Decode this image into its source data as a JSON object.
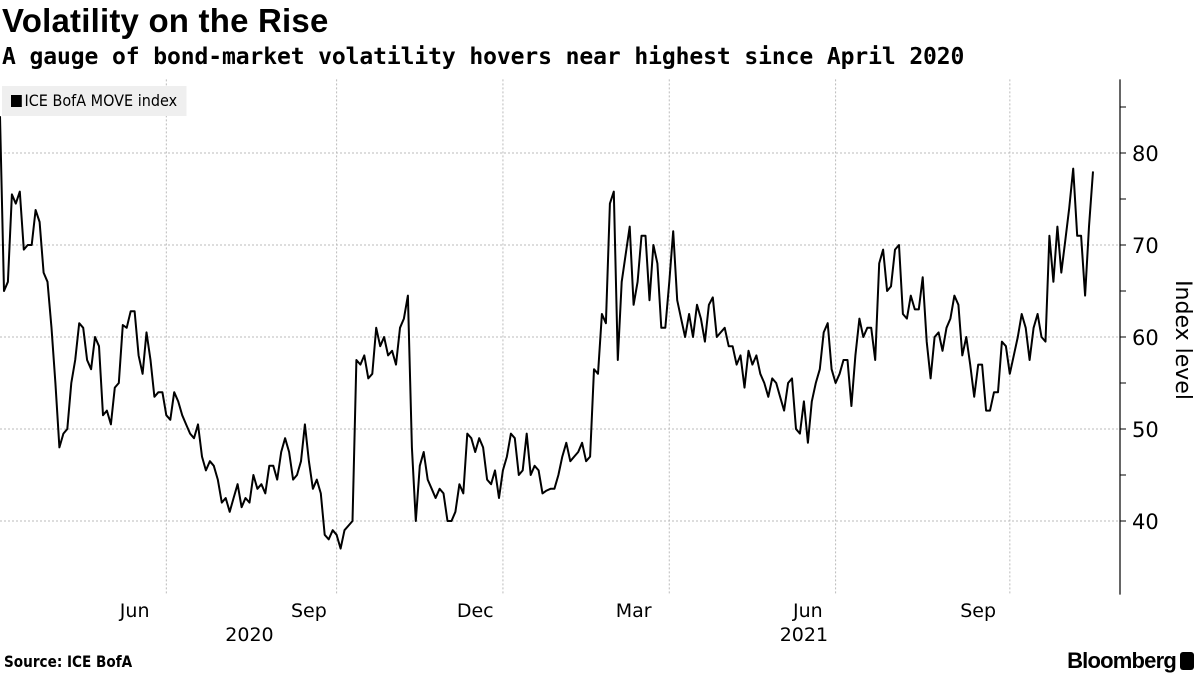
{
  "header": {
    "title": "Volatility on the Rise",
    "subtitle": "A gauge of bond-market volatility hovers near highest since April 2020"
  },
  "footer": {
    "source": "Source: ICE BofA",
    "brand": "Bloomberg"
  },
  "chart_data": {
    "type": "line",
    "title": "Volatility on the Rise",
    "subtitle": "A gauge of bond-market volatility hovers near highest since April 2020",
    "xlabel": "",
    "ylabel": "Index level",
    "ylim": [
      32,
      88
    ],
    "grid": true,
    "legend": {
      "position": "top-left",
      "entries": [
        "ICE BofA MOVE index"
      ]
    },
    "line_color": "#000000",
    "y_ticks": [
      40,
      50,
      60,
      70,
      80
    ],
    "y_minor_ticks": [
      45,
      55,
      65,
      75,
      85
    ],
    "x_gridlines_at_index": [
      42,
      85,
      127,
      169,
      211,
      255
    ],
    "x_ticks": [
      {
        "label": "Jun",
        "index": 34
      },
      {
        "label": "Sep",
        "index": 78
      },
      {
        "label": "Dec",
        "index": 120
      },
      {
        "label": "Mar",
        "index": 160
      },
      {
        "label": "Jun",
        "index": 204
      },
      {
        "label": "Sep",
        "index": 247
      }
    ],
    "x_year_labels": [
      {
        "label": "2020",
        "index": 63
      },
      {
        "label": "2021",
        "index": 203
      }
    ],
    "series": [
      {
        "name": "ICE BofA MOVE index",
        "values": [
          84,
          65,
          66,
          75.5,
          74.5,
          75.8,
          69.5,
          70,
          70,
          73.8,
          72.5,
          67,
          66,
          61,
          55,
          48,
          49.5,
          50,
          55,
          57.5,
          61.5,
          61,
          57.5,
          56.5,
          60,
          59,
          51.5,
          52,
          50.5,
          54.5,
          55,
          61.3,
          61,
          62.8,
          62.8,
          58,
          56,
          60.5,
          57.5,
          53.5,
          54,
          54,
          51.5,
          51,
          54,
          53,
          51.5,
          50.5,
          49.5,
          49,
          50.5,
          47,
          45.5,
          46.5,
          46,
          44.5,
          42,
          42.5,
          41,
          42.5,
          44,
          41.5,
          42.5,
          42,
          45,
          43.5,
          44,
          43,
          46,
          46,
          44.5,
          47.5,
          49,
          47.5,
          44.5,
          45,
          46.5,
          50.5,
          46.5,
          43.5,
          44.5,
          43,
          38.5,
          38,
          39,
          38.5,
          37,
          39,
          39.5,
          40,
          57.5,
          57,
          58,
          55.5,
          56,
          61,
          59,
          60,
          58,
          58.5,
          57,
          61,
          62,
          64.5,
          48,
          40,
          46,
          47.5,
          44.5,
          43.5,
          42.5,
          43.5,
          43,
          40,
          40,
          41,
          44,
          43,
          49.5,
          49,
          47.5,
          49,
          48,
          44.5,
          44,
          45.5,
          42.5,
          45.5,
          47,
          49.5,
          49,
          45,
          45.5,
          49.5,
          45,
          46,
          45.5,
          43,
          43.3,
          43.5,
          43.5,
          45,
          47,
          48.5,
          46.5,
          47,
          47.5,
          48.5,
          46.5,
          47,
          56.5,
          56,
          62.5,
          61.5,
          74.5,
          75.8,
          57.5,
          66,
          69,
          72,
          63.5,
          66,
          71,
          71,
          64,
          70,
          68,
          61,
          61,
          66,
          71.5,
          64,
          62,
          60,
          62.5,
          60,
          63.5,
          62,
          59.5,
          63.5,
          64.3,
          60,
          60.5,
          61,
          59,
          59,
          57,
          58,
          54.5,
          58.5,
          57,
          58,
          56,
          55,
          53.5,
          55.5,
          55,
          53.5,
          52,
          55,
          55.5,
          50,
          49.5,
          53,
          48.5,
          53,
          55,
          56.5,
          60.5,
          61.5,
          56.5,
          55,
          56,
          57.5,
          57.5,
          52.5,
          58,
          62,
          60,
          61,
          61,
          57.5,
          68,
          69.5,
          65,
          65.5,
          69.5,
          70,
          62.5,
          62,
          64.5,
          63,
          63,
          66.5,
          59.5,
          55.5,
          60,
          60.5,
          58.5,
          61,
          62,
          64.5,
          63.5,
          58,
          60,
          57,
          53.5,
          57,
          57,
          52,
          52,
          54,
          54,
          59.5,
          59,
          56,
          58,
          60,
          62.5,
          61,
          57.5,
          61,
          62.5,
          60,
          59.5,
          71,
          66,
          72,
          67,
          70.5,
          74,
          78.3,
          71,
          71,
          64.5,
          72,
          78
        ]
      }
    ]
  }
}
